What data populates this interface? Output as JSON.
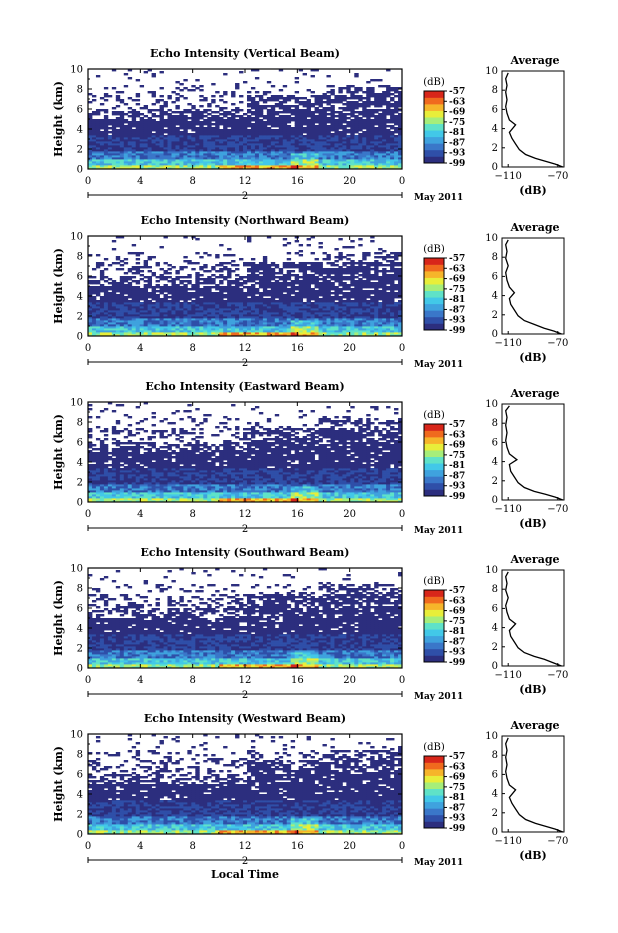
{
  "chart_data": [
    {
      "type": "heatmap",
      "title": "Echo Intensity (Vertical Beam)",
      "ylabel": "Height (km)",
      "x_ticks": [
        "0",
        "4",
        "8",
        "12",
        "16",
        "20",
        "0"
      ],
      "day_label": "2",
      "month_label": "May 2011",
      "xlim": [
        0,
        24
      ],
      "ylim": [
        0,
        10
      ],
      "y_ticks": [
        "0",
        "2",
        "4",
        "6",
        "8",
        "10"
      ],
      "colorbar": {
        "unit": "(dB)",
        "ticks": [
          "-57",
          "-63",
          "-69",
          "-75",
          "-81",
          "-87",
          "-93",
          "-99"
        ],
        "range": [
          -99,
          -57
        ]
      },
      "average_profile": {
        "title": "Average",
        "xlabel": "(dB)",
        "x_ticks": [
          "-110",
          "-70"
        ],
        "xlim": [
          -115,
          -65
        ],
        "y_ticks": [
          "0",
          "2",
          "4",
          "6",
          "8",
          "10"
        ],
        "points": [
          [
            -66,
            0.0
          ],
          [
            -72,
            0.3
          ],
          [
            -80,
            0.6
          ],
          [
            -88,
            0.9
          ],
          [
            -96,
            1.3
          ],
          [
            -101,
            1.8
          ],
          [
            -104,
            2.4
          ],
          [
            -107,
            3.0
          ],
          [
            -109,
            3.6
          ],
          [
            -104,
            4.4
          ],
          [
            -109,
            4.9
          ],
          [
            -111,
            5.6
          ],
          [
            -112,
            6.3
          ],
          [
            -111,
            7.0
          ],
          [
            -112,
            7.8
          ],
          [
            -111,
            8.5
          ],
          [
            -112,
            9.2
          ],
          [
            -110,
            9.8
          ]
        ]
      }
    },
    {
      "type": "heatmap",
      "title": "Echo Intensity (Northward Beam)",
      "ylabel": "Height (km)",
      "x_ticks": [
        "0",
        "4",
        "8",
        "12",
        "16",
        "20",
        "0"
      ],
      "day_label": "2",
      "month_label": "May 2011",
      "xlim": [
        0,
        24
      ],
      "ylim": [
        0,
        10
      ],
      "y_ticks": [
        "0",
        "2",
        "4",
        "6",
        "8",
        "10"
      ],
      "colorbar": {
        "unit": "(dB)",
        "ticks": [
          "-57",
          "-63",
          "-69",
          "-75",
          "-81",
          "-87",
          "-93",
          "-99"
        ],
        "range": [
          -99,
          -57
        ]
      },
      "average_profile": {
        "title": "Average",
        "xlabel": "(dB)",
        "x_ticks": [
          "-110",
          "-70"
        ],
        "xlim": [
          -115,
          -65
        ],
        "y_ticks": [
          "0",
          "2",
          "4",
          "6",
          "8",
          "10"
        ],
        "points": [
          [
            -67,
            0.0
          ],
          [
            -73,
            0.3
          ],
          [
            -81,
            0.6
          ],
          [
            -89,
            1.0
          ],
          [
            -97,
            1.4
          ],
          [
            -102,
            1.9
          ],
          [
            -105,
            2.5
          ],
          [
            -108,
            3.1
          ],
          [
            -109,
            3.7
          ],
          [
            -105,
            4.3
          ],
          [
            -109,
            4.9
          ],
          [
            -111,
            5.6
          ],
          [
            -112,
            6.4
          ],
          [
            -110,
            7.1
          ],
          [
            -112,
            7.9
          ],
          [
            -111,
            8.6
          ],
          [
            -112,
            9.3
          ],
          [
            -110,
            9.8
          ]
        ]
      }
    },
    {
      "type": "heatmap",
      "title": "Echo Intensity (Eastward Beam)",
      "ylabel": "Height (km)",
      "x_ticks": [
        "0",
        "4",
        "8",
        "12",
        "16",
        "20",
        "0"
      ],
      "day_label": "2",
      "month_label": "May 2011",
      "xlim": [
        0,
        24
      ],
      "ylim": [
        0,
        10
      ],
      "y_ticks": [
        "0",
        "2",
        "4",
        "6",
        "8",
        "10"
      ],
      "colorbar": {
        "unit": "(dB)",
        "ticks": [
          "-57",
          "-63",
          "-69",
          "-75",
          "-81",
          "-87",
          "-93",
          "-99"
        ],
        "range": [
          -99,
          -57
        ]
      },
      "average_profile": {
        "title": "Average",
        "xlabel": "(dB)",
        "x_ticks": [
          "-110",
          "-70"
        ],
        "xlim": [
          -115,
          -65
        ],
        "y_ticks": [
          "0",
          "2",
          "4",
          "6",
          "8",
          "10"
        ],
        "points": [
          [
            -66,
            0.0
          ],
          [
            -72,
            0.3
          ],
          [
            -80,
            0.6
          ],
          [
            -89,
            0.9
          ],
          [
            -97,
            1.3
          ],
          [
            -102,
            1.8
          ],
          [
            -105,
            2.4
          ],
          [
            -108,
            3.0
          ],
          [
            -109,
            3.7
          ],
          [
            -103,
            4.2
          ],
          [
            -109,
            4.8
          ],
          [
            -111,
            5.5
          ],
          [
            -112,
            6.2
          ],
          [
            -111,
            7.0
          ],
          [
            -112,
            7.8
          ],
          [
            -111,
            8.6
          ],
          [
            -112,
            9.3
          ],
          [
            -109,
            9.8
          ]
        ]
      }
    },
    {
      "type": "heatmap",
      "title": "Echo Intensity (Southward Beam)",
      "ylabel": "Height (km)",
      "x_ticks": [
        "0",
        "4",
        "8",
        "12",
        "16",
        "20",
        "0"
      ],
      "day_label": "2",
      "month_label": "May 2011",
      "xlim": [
        0,
        24
      ],
      "ylim": [
        0,
        10
      ],
      "y_ticks": [
        "0",
        "2",
        "4",
        "6",
        "8",
        "10"
      ],
      "colorbar": {
        "unit": "(dB)",
        "ticks": [
          "-57",
          "-63",
          "-69",
          "-75",
          "-81",
          "-87",
          "-93",
          "-99"
        ],
        "range": [
          -99,
          -57
        ]
      },
      "average_profile": {
        "title": "Average",
        "xlabel": "(dB)",
        "x_ticks": [
          "-110",
          "-70"
        ],
        "xlim": [
          -115,
          -65
        ],
        "y_ticks": [
          "0",
          "2",
          "4",
          "6",
          "8",
          "10"
        ],
        "points": [
          [
            -67,
            0.0
          ],
          [
            -73,
            0.3
          ],
          [
            -81,
            0.7
          ],
          [
            -89,
            1.0
          ],
          [
            -97,
            1.4
          ],
          [
            -102,
            1.9
          ],
          [
            -105,
            2.5
          ],
          [
            -108,
            3.1
          ],
          [
            -109,
            3.7
          ],
          [
            -104,
            4.4
          ],
          [
            -109,
            4.9
          ],
          [
            -111,
            5.6
          ],
          [
            -112,
            6.3
          ],
          [
            -110,
            7.1
          ],
          [
            -112,
            7.9
          ],
          [
            -111,
            8.6
          ],
          [
            -112,
            9.3
          ],
          [
            -110,
            9.8
          ]
        ]
      }
    },
    {
      "type": "heatmap",
      "title": "Echo Intensity (Westward Beam)",
      "ylabel": "Height (km)",
      "xlabel": "Local Time",
      "x_ticks": [
        "0",
        "4",
        "8",
        "12",
        "16",
        "20",
        "0"
      ],
      "day_label": "2",
      "month_label": "May 2011",
      "xlim": [
        0,
        24
      ],
      "ylim": [
        0,
        10
      ],
      "y_ticks": [
        "0",
        "2",
        "4",
        "6",
        "8",
        "10"
      ],
      "colorbar": {
        "unit": "(dB)",
        "ticks": [
          "-57",
          "-63",
          "-69",
          "-75",
          "-81",
          "-87",
          "-93",
          "-99"
        ],
        "range": [
          -99,
          -57
        ]
      },
      "average_profile": {
        "title": "Average",
        "xlabel": "(dB)",
        "x_ticks": [
          "-110",
          "-70"
        ],
        "xlim": [
          -115,
          -65
        ],
        "y_ticks": [
          "0",
          "2",
          "4",
          "6",
          "8",
          "10"
        ],
        "points": [
          [
            -66,
            0.0
          ],
          [
            -72,
            0.3
          ],
          [
            -80,
            0.6
          ],
          [
            -88,
            0.9
          ],
          [
            -96,
            1.3
          ],
          [
            -101,
            1.8
          ],
          [
            -104,
            2.4
          ],
          [
            -107,
            3.0
          ],
          [
            -109,
            3.6
          ],
          [
            -104,
            4.4
          ],
          [
            -109,
            4.9
          ],
          [
            -111,
            5.6
          ],
          [
            -112,
            6.3
          ],
          [
            -111,
            7.0
          ],
          [
            -112,
            7.8
          ],
          [
            -111,
            8.5
          ],
          [
            -112,
            9.2
          ],
          [
            -110,
            9.8
          ]
        ]
      }
    }
  ]
}
